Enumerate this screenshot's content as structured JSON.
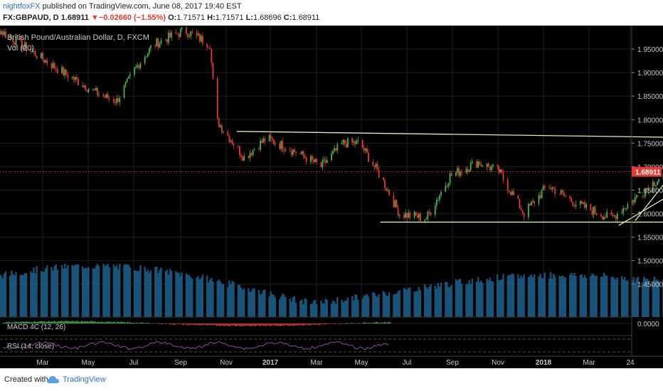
{
  "header": {
    "author": "nightfoxFX",
    "published_text": "published on TradingView.com, June 08, 2017 19:40 EST",
    "symbol": "FX:GBPAUD, D",
    "last": "1.68911",
    "change_arrow": "▼",
    "change": "−0.02660 (−1.55%)",
    "o_label": "O:",
    "o_value": "1.71571",
    "h_label": "H:",
    "h_value": "1.71571",
    "l_label": "L:",
    "l_value": "1.68696",
    "c_label": "C:",
    "c_value": "1.68911"
  },
  "footer": {
    "created_with": "Created with",
    "brand": "TradingView"
  },
  "colors": {
    "background": "#000000",
    "grid": "#1e1e1e",
    "up": "#4caf50",
    "down": "#e53935",
    "pattern_line": "#d8f0b0",
    "arrow": "#7aa0d8",
    "volume": "#1f5f8c",
    "price_tag": "#e53935",
    "rsi": "#8a4a9c"
  },
  "chart_data": {
    "type": "candlestick",
    "title": "British Pound/Australian Dollar, D, FXCM",
    "volume_label": "Vol (20)",
    "macd_label": "MACD 4C (12, 26)",
    "rsi_label": "RSI (14, close)",
    "price_axis": {
      "range": [
        1.38,
        2.0
      ],
      "ticks": [
        "1.95000",
        "1.90000",
        "1.85000",
        "1.80000",
        "1.75000",
        "1.70000",
        "1.65000",
        "1.60000",
        "1.55000",
        "1.50000",
        "1.45000"
      ],
      "last_price_label": "1.68911",
      "last_price": 1.68911
    },
    "macd_axis_label": "0.0000",
    "time_axis": {
      "labels": [
        "Mar",
        "May",
        "Jul",
        "Sep",
        "Nov",
        "2017",
        "Mar",
        "May",
        "Jul",
        "Sep",
        "Nov",
        "2018",
        "Mar",
        "24"
      ]
    },
    "price_path": [
      [
        "2016-02-01",
        1.99
      ],
      [
        "2016-02-20",
        1.95
      ],
      [
        "2016-03-15",
        1.9
      ],
      [
        "2016-04-10",
        1.85
      ],
      [
        "2016-04-20",
        1.84
      ],
      [
        "2016-05-05",
        1.92
      ],
      [
        "2016-05-15",
        1.96
      ],
      [
        "2016-06-05",
        1.99
      ],
      [
        "2016-06-22",
        1.96
      ],
      [
        "2016-06-26",
        1.8
      ],
      [
        "2016-07-15",
        1.72
      ],
      [
        "2016-07-30",
        1.76
      ],
      [
        "2016-08-20",
        1.73
      ],
      [
        "2016-09-05",
        1.7
      ],
      [
        "2016-09-20",
        1.75
      ],
      [
        "2016-10-01",
        1.75
      ],
      [
        "2016-10-15",
        1.68
      ],
      [
        "2016-10-28",
        1.6
      ],
      [
        "2016-11-15",
        1.59
      ],
      [
        "2016-12-01",
        1.68
      ],
      [
        "2016-12-20",
        1.71
      ],
      [
        "2017-01-03",
        1.69
      ],
      [
        "2017-01-20",
        1.6
      ],
      [
        "2017-02-05",
        1.66
      ],
      [
        "2017-02-25",
        1.62
      ],
      [
        "2017-03-20",
        1.59
      ],
      [
        "2017-04-15",
        1.66
      ],
      [
        "2017-05-05",
        1.71
      ],
      [
        "2017-05-20",
        1.76
      ],
      [
        "2017-06-02",
        1.74
      ],
      [
        "2017-06-08",
        1.69
      ]
    ],
    "annotations": [
      {
        "type": "resistance",
        "points": [
          [
            "2016-07-10",
            1.775
          ],
          [
            "2017-06-25",
            1.76
          ]
        ]
      },
      {
        "type": "support",
        "points": [
          [
            "2016-10-15",
            1.582
          ],
          [
            "2017-06-08",
            1.582
          ]
        ]
      },
      {
        "type": "channel",
        "points": [
          [
            "2017-04-05",
            1.585
          ],
          [
            "2017-05-20",
            1.765
          ]
        ]
      },
      {
        "type": "channel",
        "points": [
          [
            "2017-03-25",
            1.575
          ],
          [
            "2017-06-08",
            1.715
          ]
        ]
      },
      {
        "type": "channel",
        "points": [
          [
            "2017-05-20",
            1.765
          ],
          [
            "2017-06-08",
            1.72
          ]
        ]
      },
      {
        "type": "projection_arrow",
        "points": [
          [
            "2017-06-08",
            1.69
          ],
          [
            "2017-06-20",
            1.605
          ]
        ]
      }
    ]
  }
}
